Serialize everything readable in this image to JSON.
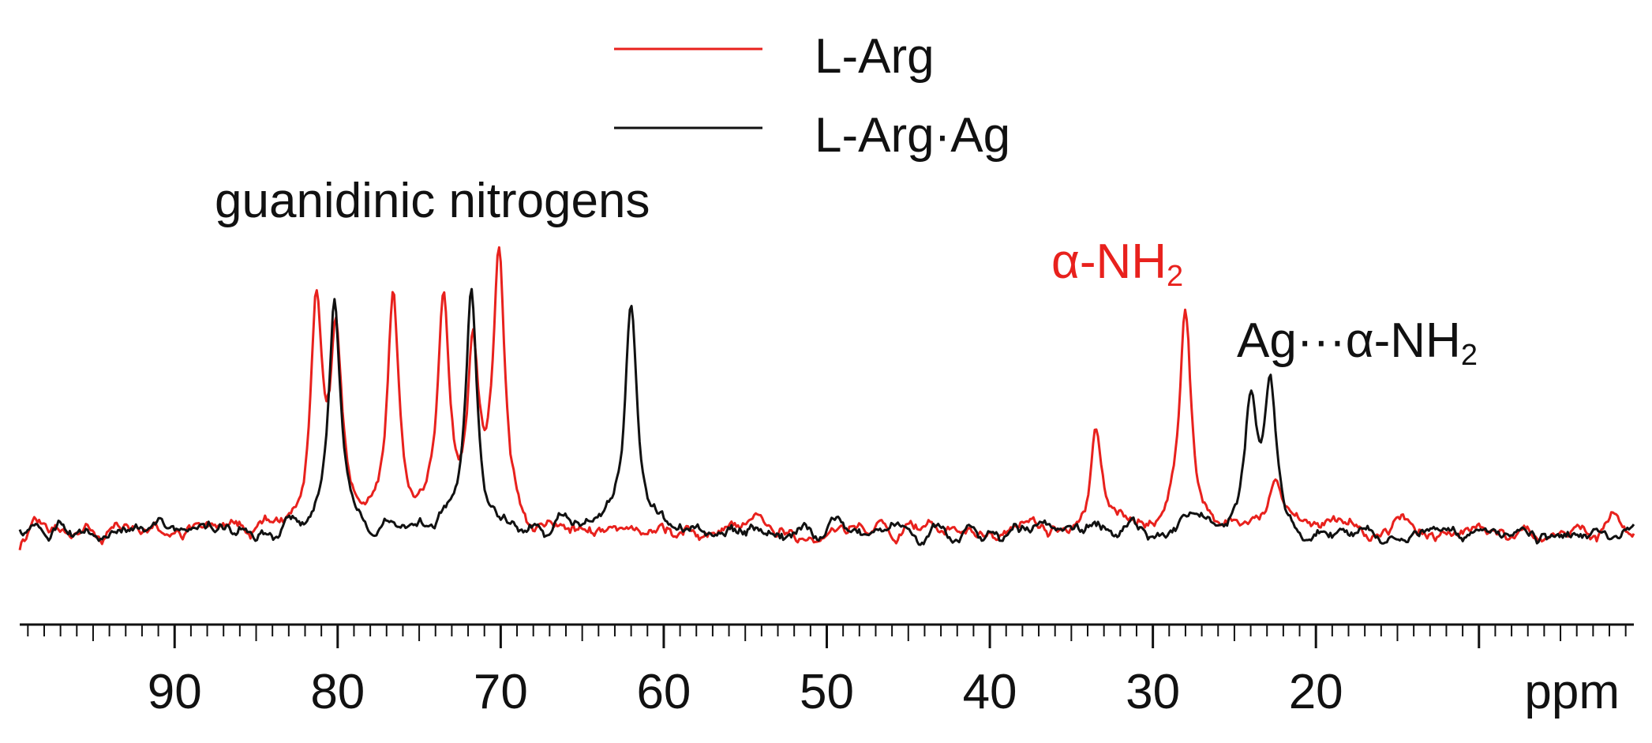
{
  "chart_data": {
    "type": "line",
    "xlabel": "ppm",
    "xlim": [
      99.5,
      0.5
    ],
    "x_reversed": true,
    "x_tick_labels": [
      "90",
      "80",
      "70",
      "60",
      "50",
      "40",
      "30",
      "20"
    ],
    "x_tick_values": [
      90,
      80,
      70,
      60,
      50,
      40,
      30,
      20
    ],
    "minor_tick_step": 1,
    "y_axis_visible": false,
    "grid": false,
    "legend": {
      "position": "top-center",
      "entries": [
        {
          "label": "L-Arg",
          "color": "#e8211d"
        },
        {
          "label": "L-Arg·Ag",
          "color": "#111111"
        }
      ]
    },
    "annotations": [
      {
        "text": "guanidinic nitrogens",
        "color": "#111111"
      },
      {
        "text": "α-NH",
        "sub": "2",
        "color": "#e8211d"
      },
      {
        "text": "Ag···α-NH",
        "sub": "2",
        "color": "#111111"
      }
    ],
    "series": [
      {
        "name": "L-Arg",
        "color": "#e8211d",
        "peaks": [
          {
            "ppm": 81.3,
            "intensity": 0.95
          },
          {
            "ppm": 80.1,
            "intensity": 0.8
          },
          {
            "ppm": 76.6,
            "intensity": 1.0
          },
          {
            "ppm": 73.5,
            "intensity": 1.02
          },
          {
            "ppm": 71.7,
            "intensity": 0.75
          },
          {
            "ppm": 70.1,
            "intensity": 1.2
          },
          {
            "ppm": 33.5,
            "intensity": 0.5
          },
          {
            "ppm": 28.0,
            "intensity": 1.0
          },
          {
            "ppm": 22.5,
            "intensity": 0.18
          }
        ]
      },
      {
        "name": "L-Arg·Ag",
        "color": "#111111",
        "peaks": [
          {
            "ppm": 80.2,
            "intensity": 1.03
          },
          {
            "ppm": 71.8,
            "intensity": 1.05
          },
          {
            "ppm": 62.0,
            "intensity": 1.0
          },
          {
            "ppm": 24.0,
            "intensity": 0.55
          },
          {
            "ppm": 22.8,
            "intensity": 0.6
          }
        ]
      }
    ]
  }
}
